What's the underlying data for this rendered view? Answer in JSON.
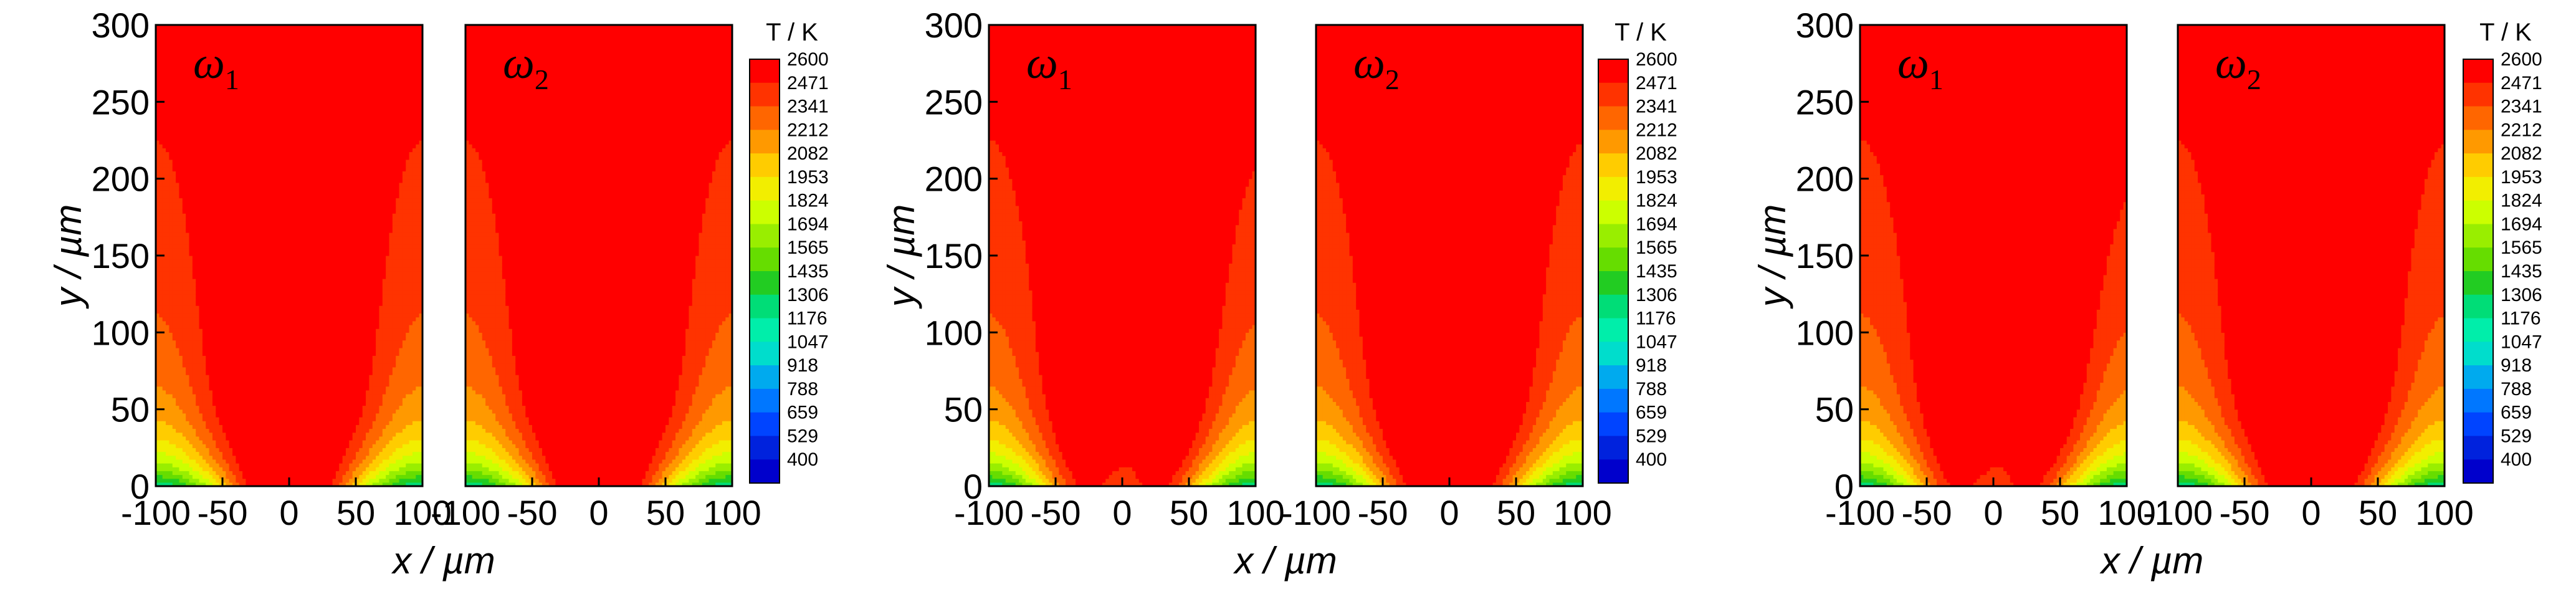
{
  "chart_data": [
    {
      "type": "heatmap",
      "xlabel": "x / µm",
      "ylabel": "y / µm",
      "xlim": [
        -100,
        100
      ],
      "ylim": [
        0,
        300
      ],
      "xticks": [
        "-100",
        "-50",
        "0",
        "50",
        "100"
      ],
      "yticks": [
        "0",
        "50",
        "100",
        "150",
        "200",
        "250",
        "300"
      ],
      "panels": [
        {
          "label": "ω",
          "subscript": "1",
          "peak_offset_um": 18,
          "tilt": 0.0
        },
        {
          "label": "ω",
          "subscript": "2",
          "peak_offset_um": 18,
          "tilt": 0.0
        }
      ],
      "colorbar": {
        "title": "T / K",
        "levels": [
          "2600",
          "2471",
          "2341",
          "2212",
          "2082",
          "1953",
          "1824",
          "1694",
          "1565",
          "1435",
          "1306",
          "1176",
          "1047",
          "918",
          "788",
          "659",
          "529",
          "400"
        ]
      }
    },
    {
      "type": "heatmap",
      "xlabel": "x / µm",
      "ylabel": "y / µm",
      "xlim": [
        -100,
        100
      ],
      "ylim": [
        0,
        300
      ],
      "xticks": [
        "-100",
        "-50",
        "0",
        "50",
        "100"
      ],
      "yticks": [
        "0",
        "50",
        "100",
        "150",
        "200",
        "250",
        "300"
      ],
      "panels": [
        {
          "label": "ω",
          "subscript": "1",
          "peak_offset_um": 28,
          "tilt": 0.35
        },
        {
          "label": "ω",
          "subscript": "2",
          "peak_offset_um": 22,
          "tilt": 0.05
        }
      ],
      "colorbar": {
        "title": "T / K",
        "levels": [
          "2600",
          "2471",
          "2341",
          "2212",
          "2082",
          "1953",
          "1824",
          "1694",
          "1565",
          "1435",
          "1306",
          "1176",
          "1047",
          "918",
          "788",
          "659",
          "529",
          "400"
        ]
      }
    },
    {
      "type": "heatmap",
      "xlabel": "x / µm",
      "ylabel": "y / µm",
      "xlim": [
        -100,
        100
      ],
      "ylim": [
        0,
        300
      ],
      "xticks": [
        "-100",
        "-50",
        "0",
        "50",
        "100"
      ],
      "yticks": [
        "0",
        "50",
        "100",
        "150",
        "200",
        "250",
        "300"
      ],
      "panels": [
        {
          "label": "ω",
          "subscript": "1",
          "peak_offset_um": 28,
          "tilt": 0.55
        },
        {
          "label": "ω",
          "subscript": "2",
          "peak_offset_um": 22,
          "tilt": 0.08
        }
      ],
      "colorbar": {
        "title": "T / K",
        "levels": [
          "2600",
          "2471",
          "2341",
          "2212",
          "2082",
          "1953",
          "1824",
          "1694",
          "1565",
          "1435",
          "1306",
          "1176",
          "1047",
          "918",
          "788",
          "659",
          "529",
          "400"
        ]
      }
    }
  ],
  "colors": {
    "level_colors": [
      "#ff0000",
      "#ff3300",
      "#ff6600",
      "#ff9900",
      "#ffcc00",
      "#f2ee00",
      "#ccff00",
      "#99ee00",
      "#66dd00",
      "#22cc22",
      "#00dd77",
      "#00eeaa",
      "#00ddcc",
      "#00aaee",
      "#0077ff",
      "#0044ff",
      "#0022dd",
      "#0000cc"
    ]
  }
}
